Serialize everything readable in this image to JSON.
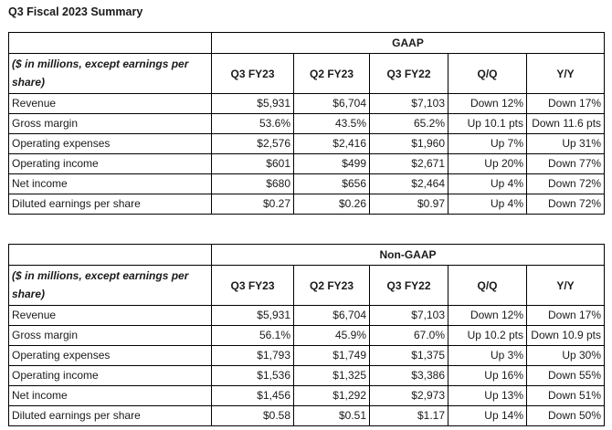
{
  "page": {
    "title": "Q3 Fiscal 2023 Summary"
  },
  "gaap": {
    "banner": "GAAP",
    "desc": "($ in millions, except earnings per share)",
    "columns": [
      "Q3 FY23",
      "Q2 FY23",
      "Q3 FY22",
      "Q/Q",
      "Y/Y"
    ],
    "rows": [
      {
        "label": "Revenue",
        "cells": [
          "$5,931",
          "$6,704",
          "$7,103",
          "Down 12%",
          "Down 17%"
        ]
      },
      {
        "label": "Gross margin",
        "cells": [
          "53.6%",
          "43.5%",
          "65.2%",
          "Up 10.1 pts",
          "Down 11.6 pts"
        ]
      },
      {
        "label": "Operating expenses",
        "cells": [
          "$2,576",
          "$2,416",
          "$1,960",
          "Up 7%",
          "Up 31%"
        ]
      },
      {
        "label": "Operating income",
        "cells": [
          "$601",
          "$499",
          "$2,671",
          "Up 20%",
          "Down 77%"
        ]
      },
      {
        "label": "Net income",
        "cells": [
          "$680",
          "$656",
          "$2,464",
          "Up 4%",
          "Down 72%"
        ]
      },
      {
        "label": "Diluted earnings per share",
        "cells": [
          "$0.27",
          "$0.26",
          "$0.97",
          "Up 4%",
          "Down 72%"
        ]
      }
    ]
  },
  "nongaap": {
    "banner": "Non-GAAP",
    "desc": "($ in millions, except earnings per share)",
    "columns": [
      "Q3 FY23",
      "Q2 FY23",
      "Q3 FY22",
      "Q/Q",
      "Y/Y"
    ],
    "rows": [
      {
        "label": "Revenue",
        "cells": [
          "$5,931",
          "$6,704",
          "$7,103",
          "Down 12%",
          "Down 17%"
        ]
      },
      {
        "label": "Gross margin",
        "cells": [
          "56.1%",
          "45.9%",
          "67.0%",
          "Up 10.2 pts",
          "Down 10.9 pts"
        ]
      },
      {
        "label": "Operating expenses",
        "cells": [
          "$1,793",
          "$1,749",
          "$1,375",
          "Up 3%",
          "Up 30%"
        ]
      },
      {
        "label": "Operating income",
        "cells": [
          "$1,536",
          "$1,325",
          "$3,386",
          "Up 16%",
          "Down 55%"
        ]
      },
      {
        "label": "Net income",
        "cells": [
          "$1,456",
          "$1,292",
          "$2,973",
          "Up 13%",
          "Down 51%"
        ]
      },
      {
        "label": "Diluted earnings per share",
        "cells": [
          "$0.58",
          "$0.51",
          "$1.17",
          "Up 14%",
          "Down 50%"
        ]
      }
    ]
  }
}
